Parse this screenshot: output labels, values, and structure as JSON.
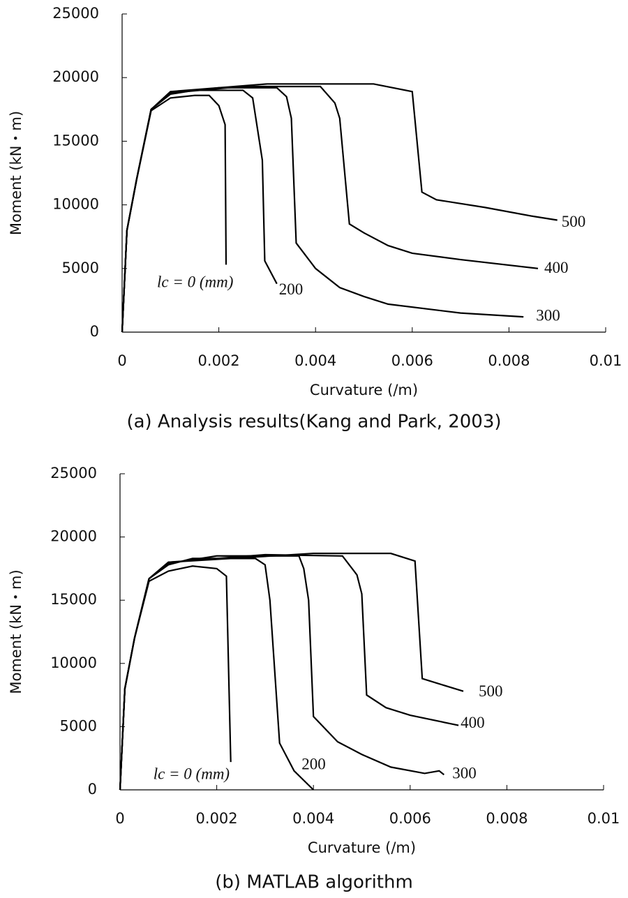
{
  "chart_data": [
    {
      "type": "line",
      "title": "(a) Analysis results(Kang and Park, 2003)",
      "x_label": "Curvature (/m)",
      "y_label": "Moment (kN・m)",
      "xlim": [
        0,
        0.01
      ],
      "xticks": [
        0,
        0.002,
        0.004,
        0.006,
        0.008,
        0.01
      ],
      "ylim": [
        0,
        25000
      ],
      "yticks": [
        0,
        5000,
        10000,
        15000,
        20000,
        25000
      ],
      "grid": false,
      "series": [
        {
          "name": "lc = 0 (mm)",
          "color": "#000000",
          "x": [
            0,
            0.0001,
            0.0003,
            0.0006,
            0.001,
            0.0015,
            0.0018,
            0.002,
            0.00213,
            0.00215
          ],
          "values": [
            0,
            8000,
            12000,
            17400,
            18400,
            18600,
            18600,
            17800,
            16300,
            5300
          ]
        },
        {
          "name": "200",
          "color": "#000000",
          "x": [
            0,
            0.0001,
            0.0003,
            0.0006,
            0.001,
            0.0015,
            0.0025,
            0.0027,
            0.0029,
            0.00295,
            0.0032
          ],
          "values": [
            0,
            8000,
            12000,
            17500,
            18700,
            19000,
            19000,
            18400,
            13500,
            5600,
            3800
          ]
        },
        {
          "name": "300",
          "color": "#000000",
          "x": [
            0,
            0.0001,
            0.0003,
            0.0006,
            0.001,
            0.002,
            0.0032,
            0.0034,
            0.0035,
            0.0036,
            0.004,
            0.0045,
            0.005,
            0.0055,
            0.007,
            0.0083
          ],
          "values": [
            0,
            8000,
            12000,
            17500,
            18800,
            19200,
            19200,
            18500,
            16800,
            7000,
            5000,
            3500,
            2800,
            2200,
            1500,
            1200
          ]
        },
        {
          "name": "400",
          "color": "#000000",
          "x": [
            0,
            0.0001,
            0.0003,
            0.0006,
            0.001,
            0.0025,
            0.0041,
            0.0044,
            0.0045,
            0.0047,
            0.005,
            0.0055,
            0.006,
            0.007,
            0.0086
          ],
          "values": [
            0,
            8000,
            12000,
            17500,
            18800,
            19300,
            19300,
            18000,
            16800,
            8500,
            7800,
            6800,
            6200,
            5700,
            5000
          ]
        },
        {
          "name": "500",
          "color": "#000000",
          "x": [
            0,
            0.0001,
            0.0003,
            0.0006,
            0.001,
            0.003,
            0.0052,
            0.006,
            0.0062,
            0.0065,
            0.0075,
            0.0085,
            0.009
          ],
          "values": [
            0,
            8000,
            12000,
            17500,
            18900,
            19500,
            19500,
            18900,
            11000,
            10400,
            9800,
            9100,
            8800
          ]
        }
      ]
    },
    {
      "type": "line",
      "title": "(b) MATLAB algorithm",
      "x_label": "Curvature (/m)",
      "y_label": "Moment (kN・m)",
      "xlim": [
        0,
        0.01
      ],
      "xticks": [
        0,
        0.002,
        0.004,
        0.006,
        0.008,
        0.01
      ],
      "ylim": [
        0,
        25000
      ],
      "yticks": [
        0,
        5000,
        10000,
        15000,
        20000,
        25000
      ],
      "grid": false,
      "series": [
        {
          "name": "lc = 0 (mm)",
          "color": "#000000",
          "x": [
            0,
            0.0001,
            0.0003,
            0.0006,
            0.001,
            0.0015,
            0.002,
            0.0022,
            0.00229
          ],
          "values": [
            0,
            8000,
            12000,
            16500,
            17300,
            17700,
            17500,
            16900,
            2200
          ]
        },
        {
          "name": "200",
          "color": "#000000",
          "x": [
            0,
            0.0001,
            0.0003,
            0.0006,
            0.001,
            0.0015,
            0.0028,
            0.003,
            0.0031,
            0.0033,
            0.0036,
            0.004
          ],
          "values": [
            0,
            8000,
            12000,
            16700,
            17800,
            18300,
            18300,
            17800,
            15000,
            3700,
            1500,
            0
          ]
        },
        {
          "name": "300",
          "color": "#000000",
          "x": [
            0,
            0.0001,
            0.0003,
            0.0006,
            0.001,
            0.002,
            0.0037,
            0.0038,
            0.0039,
            0.004,
            0.0045,
            0.005,
            0.0056,
            0.0063,
            0.0066,
            0.0067
          ],
          "values": [
            0,
            8000,
            12000,
            16700,
            17900,
            18500,
            18500,
            17500,
            15000,
            5800,
            3800,
            2800,
            1800,
            1300,
            1500,
            1200
          ]
        },
        {
          "name": "400",
          "color": "#000000",
          "x": [
            0,
            0.0001,
            0.0003,
            0.0006,
            0.001,
            0.003,
            0.0046,
            0.0049,
            0.005,
            0.0051,
            0.0055,
            0.006,
            0.007
          ],
          "values": [
            0,
            8000,
            12000,
            16700,
            18000,
            18600,
            18500,
            17000,
            15500,
            7500,
            6500,
            5900,
            5100
          ]
        },
        {
          "name": "500",
          "color": "#000000",
          "x": [
            0,
            0.0001,
            0.0003,
            0.0006,
            0.001,
            0.004,
            0.0056,
            0.0061,
            0.00625,
            0.0065,
            0.0071
          ],
          "values": [
            0,
            8000,
            12000,
            16700,
            18000,
            18700,
            18700,
            18100,
            8800,
            8500,
            7800
          ]
        }
      ]
    }
  ]
}
